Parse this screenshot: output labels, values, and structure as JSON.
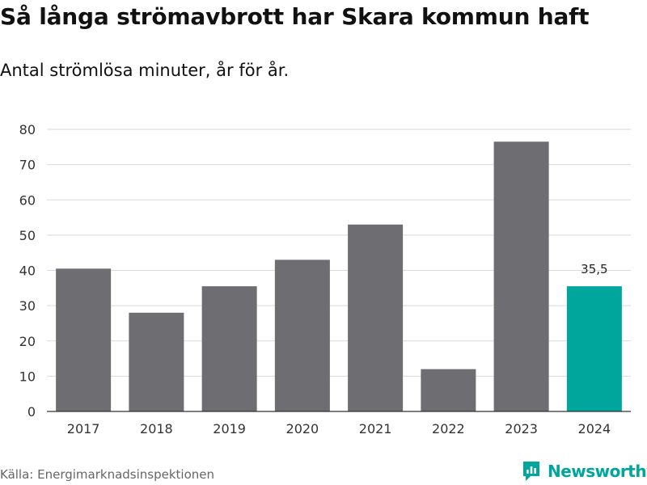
{
  "brand": {
    "name": "Newsworthy",
    "accent": "#00a69c"
  },
  "source": "Källa: Energimarknadsinspektionen",
  "colors": {
    "bar": "#6d6d72",
    "highlight": "#00a69c",
    "grid": "#d9d9d9",
    "axis": "#333333"
  },
  "chart_data": {
    "type": "bar",
    "title": "Så långa strömavbrott har Skara kommun haft",
    "subtitle": "Antal strömlösa minuter, år för år.",
    "xlabel": "",
    "ylabel": "",
    "categories": [
      "2017",
      "2018",
      "2019",
      "2020",
      "2021",
      "2022",
      "2023",
      "2024"
    ],
    "values": [
      40.5,
      28,
      35.5,
      43,
      53,
      12,
      76.5,
      35.5
    ],
    "highlight_index": 7,
    "data_labels": [
      {
        "index": 7,
        "text": "35,5"
      }
    ],
    "ylim": [
      0,
      80
    ],
    "yticks": [
      0,
      10,
      20,
      30,
      40,
      50,
      60,
      70,
      80
    ],
    "grid": true,
    "legend": "none"
  }
}
